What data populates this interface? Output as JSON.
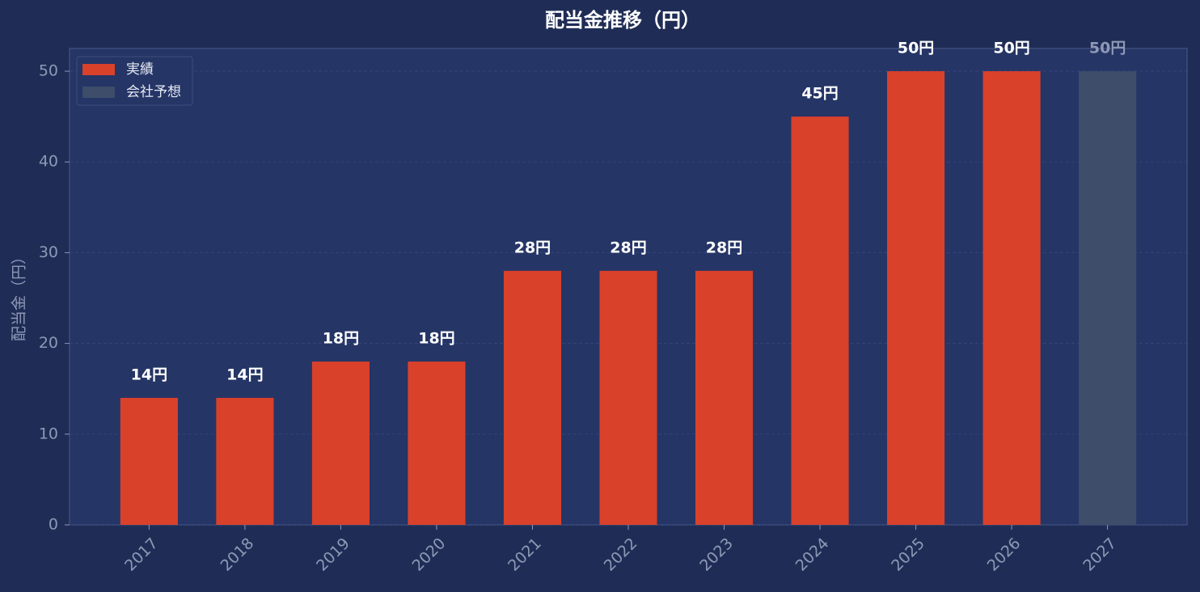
{
  "chart_data": {
    "type": "bar",
    "title": "配当金推移（円）",
    "ylabel": "配当金（円）",
    "categories": [
      "2017",
      "2018",
      "2019",
      "2020",
      "2021",
      "2022",
      "2023",
      "2024",
      "2025",
      "2026",
      "2027"
    ],
    "series": [
      {
        "name": "実績",
        "color": "#d9412b",
        "values": [
          14,
          14,
          18,
          18,
          28,
          28,
          28,
          45,
          50,
          50,
          null
        ],
        "value_labels": [
          "14円",
          "14円",
          "18円",
          "18円",
          "28円",
          "28円",
          "28円",
          "45円",
          "50円",
          "50円",
          null
        ]
      },
      {
        "name": "会社予想",
        "color": "#3d4d6a",
        "values": [
          null,
          null,
          null,
          null,
          null,
          null,
          null,
          null,
          null,
          null,
          50
        ],
        "value_labels": [
          null,
          null,
          null,
          null,
          null,
          null,
          null,
          null,
          null,
          null,
          "50円"
        ]
      }
    ],
    "ylim": [
      0,
      52.5
    ],
    "yticks": [
      0,
      10,
      20,
      30,
      40,
      50
    ],
    "grid": true,
    "legend": "upper left"
  }
}
